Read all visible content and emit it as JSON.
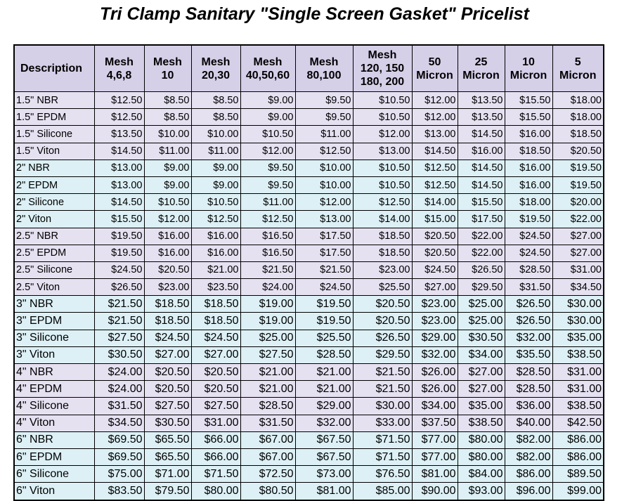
{
  "title": "Tri Clamp Sanitary \"Single Screen Gasket\" Pricelist",
  "table": {
    "header": [
      [
        "Description"
      ],
      [
        "Mesh",
        "4,6,8"
      ],
      [
        "Mesh",
        "10"
      ],
      [
        "Mesh",
        "20,30"
      ],
      [
        "Mesh",
        "40,50,60"
      ],
      [
        "Mesh",
        "80,100"
      ],
      [
        "Mesh",
        "120, 150",
        "180, 200"
      ],
      [
        "50",
        "Micron"
      ],
      [
        "25",
        "Micron"
      ],
      [
        "10",
        "Micron"
      ],
      [
        "5",
        "Micron"
      ]
    ],
    "rows": [
      [
        "1.5\" NBR",
        "$12.50",
        "$8.50",
        "$8.50",
        "$9.00",
        "$9.50",
        "$10.50",
        "$12.00",
        "$13.50",
        "$15.50",
        "$18.00"
      ],
      [
        "1.5\" EPDM",
        "$12.50",
        "$8.50",
        "$8.50",
        "$9.00",
        "$9.50",
        "$10.50",
        "$12.00",
        "$13.50",
        "$15.50",
        "$18.00"
      ],
      [
        "1.5\" Silicone",
        "$13.50",
        "$10.00",
        "$10.00",
        "$10.50",
        "$11.00",
        "$12.00",
        "$13.00",
        "$14.50",
        "$16.00",
        "$18.50"
      ],
      [
        "1.5\" Viton",
        "$14.50",
        "$11.00",
        "$11.00",
        "$12.00",
        "$12.50",
        "$13.00",
        "$14.50",
        "$16.00",
        "$18.50",
        "$20.50"
      ],
      [
        "2\" NBR",
        "$13.00",
        "$9.00",
        "$9.00",
        "$9.50",
        "$10.00",
        "$10.50",
        "$12.50",
        "$14.50",
        "$16.00",
        "$19.50"
      ],
      [
        "2\" EPDM",
        "$13.00",
        "$9.00",
        "$9.00",
        "$9.50",
        "$10.00",
        "$10.50",
        "$12.50",
        "$14.50",
        "$16.00",
        "$19.50"
      ],
      [
        "2\" Silicone",
        "$14.50",
        "$10.50",
        "$10.50",
        "$11.00",
        "$12.00",
        "$12.50",
        "$14.00",
        "$15.50",
        "$18.00",
        "$20.00"
      ],
      [
        "2\" Viton",
        "$15.50",
        "$12.00",
        "$12.50",
        "$12.50",
        "$13.00",
        "$14.00",
        "$15.00",
        "$17.50",
        "$19.50",
        "$22.00"
      ],
      [
        "2.5\" NBR",
        "$19.50",
        "$16.00",
        "$16.00",
        "$16.50",
        "$17.50",
        "$18.50",
        "$20.50",
        "$22.00",
        "$24.50",
        "$27.00"
      ],
      [
        "2.5\" EPDM",
        "$19.50",
        "$16.00",
        "$16.00",
        "$16.50",
        "$17.50",
        "$18.50",
        "$20.50",
        "$22.00",
        "$24.50",
        "$27.00"
      ],
      [
        "2.5\" Silicone",
        "$24.50",
        "$20.50",
        "$21.00",
        "$21.50",
        "$21.50",
        "$23.00",
        "$24.50",
        "$26.50",
        "$28.50",
        "$31.00"
      ],
      [
        "2.5\" Viton",
        "$26.50",
        "$23.00",
        "$23.50",
        "$24.00",
        "$24.50",
        "$25.50",
        "$27.00",
        "$29.50",
        "$31.50",
        "$34.50"
      ],
      [
        "3\" NBR",
        "$21.50",
        "$18.50",
        "$18.50",
        "$19.00",
        "$19.50",
        "$20.50",
        "$23.00",
        "$25.00",
        "$26.50",
        "$30.00"
      ],
      [
        "3\" EPDM",
        "$21.50",
        "$18.50",
        "$18.50",
        "$19.00",
        "$19.50",
        "$20.50",
        "$23.00",
        "$25.00",
        "$26.50",
        "$30.00"
      ],
      [
        "3\" Silicone",
        "$27.50",
        "$24.50",
        "$24.50",
        "$25.00",
        "$25.50",
        "$26.50",
        "$29.00",
        "$30.50",
        "$32.00",
        "$35.00"
      ],
      [
        "3\" Viton",
        "$30.50",
        "$27.00",
        "$27.00",
        "$27.50",
        "$28.50",
        "$29.50",
        "$32.00",
        "$34.00",
        "$35.50",
        "$38.50"
      ],
      [
        "4\" NBR",
        "$24.00",
        "$20.50",
        "$20.50",
        "$21.00",
        "$21.00",
        "$21.50",
        "$26.00",
        "$27.00",
        "$28.50",
        "$31.00"
      ],
      [
        "4\" EPDM",
        "$24.00",
        "$20.50",
        "$20.50",
        "$21.00",
        "$21.00",
        "$21.50",
        "$26.00",
        "$27.00",
        "$28.50",
        "$31.00"
      ],
      [
        "4\" Silicone",
        "$31.50",
        "$27.50",
        "$27.50",
        "$28.50",
        "$29.00",
        "$30.00",
        "$34.00",
        "$35.00",
        "$36.00",
        "$38.50"
      ],
      [
        "4\" Viton",
        "$34.50",
        "$30.50",
        "$31.00",
        "$31.50",
        "$32.00",
        "$33.00",
        "$37.50",
        "$38.50",
        "$40.00",
        "$42.50"
      ],
      [
        "6\" NBR",
        "$69.50",
        "$65.50",
        "$66.00",
        "$67.00",
        "$67.50",
        "$71.50",
        "$77.00",
        "$80.00",
        "$82.00",
        "$86.00"
      ],
      [
        "6\" EPDM",
        "$69.50",
        "$65.50",
        "$66.00",
        "$67.00",
        "$67.50",
        "$71.50",
        "$77.00",
        "$80.00",
        "$82.00",
        "$86.00"
      ],
      [
        "6\" Silicone",
        "$75.00",
        "$71.00",
        "$71.50",
        "$72.50",
        "$73.00",
        "$76.50",
        "$81.00",
        "$84.00",
        "$86.00",
        "$89.50"
      ],
      [
        "6\" Viton",
        "$83.50",
        "$79.50",
        "$80.00",
        "$80.50",
        "$81.00",
        "$85.00",
        "$90.00",
        "$93.00",
        "$96.00",
        "$99.00"
      ]
    ]
  }
}
